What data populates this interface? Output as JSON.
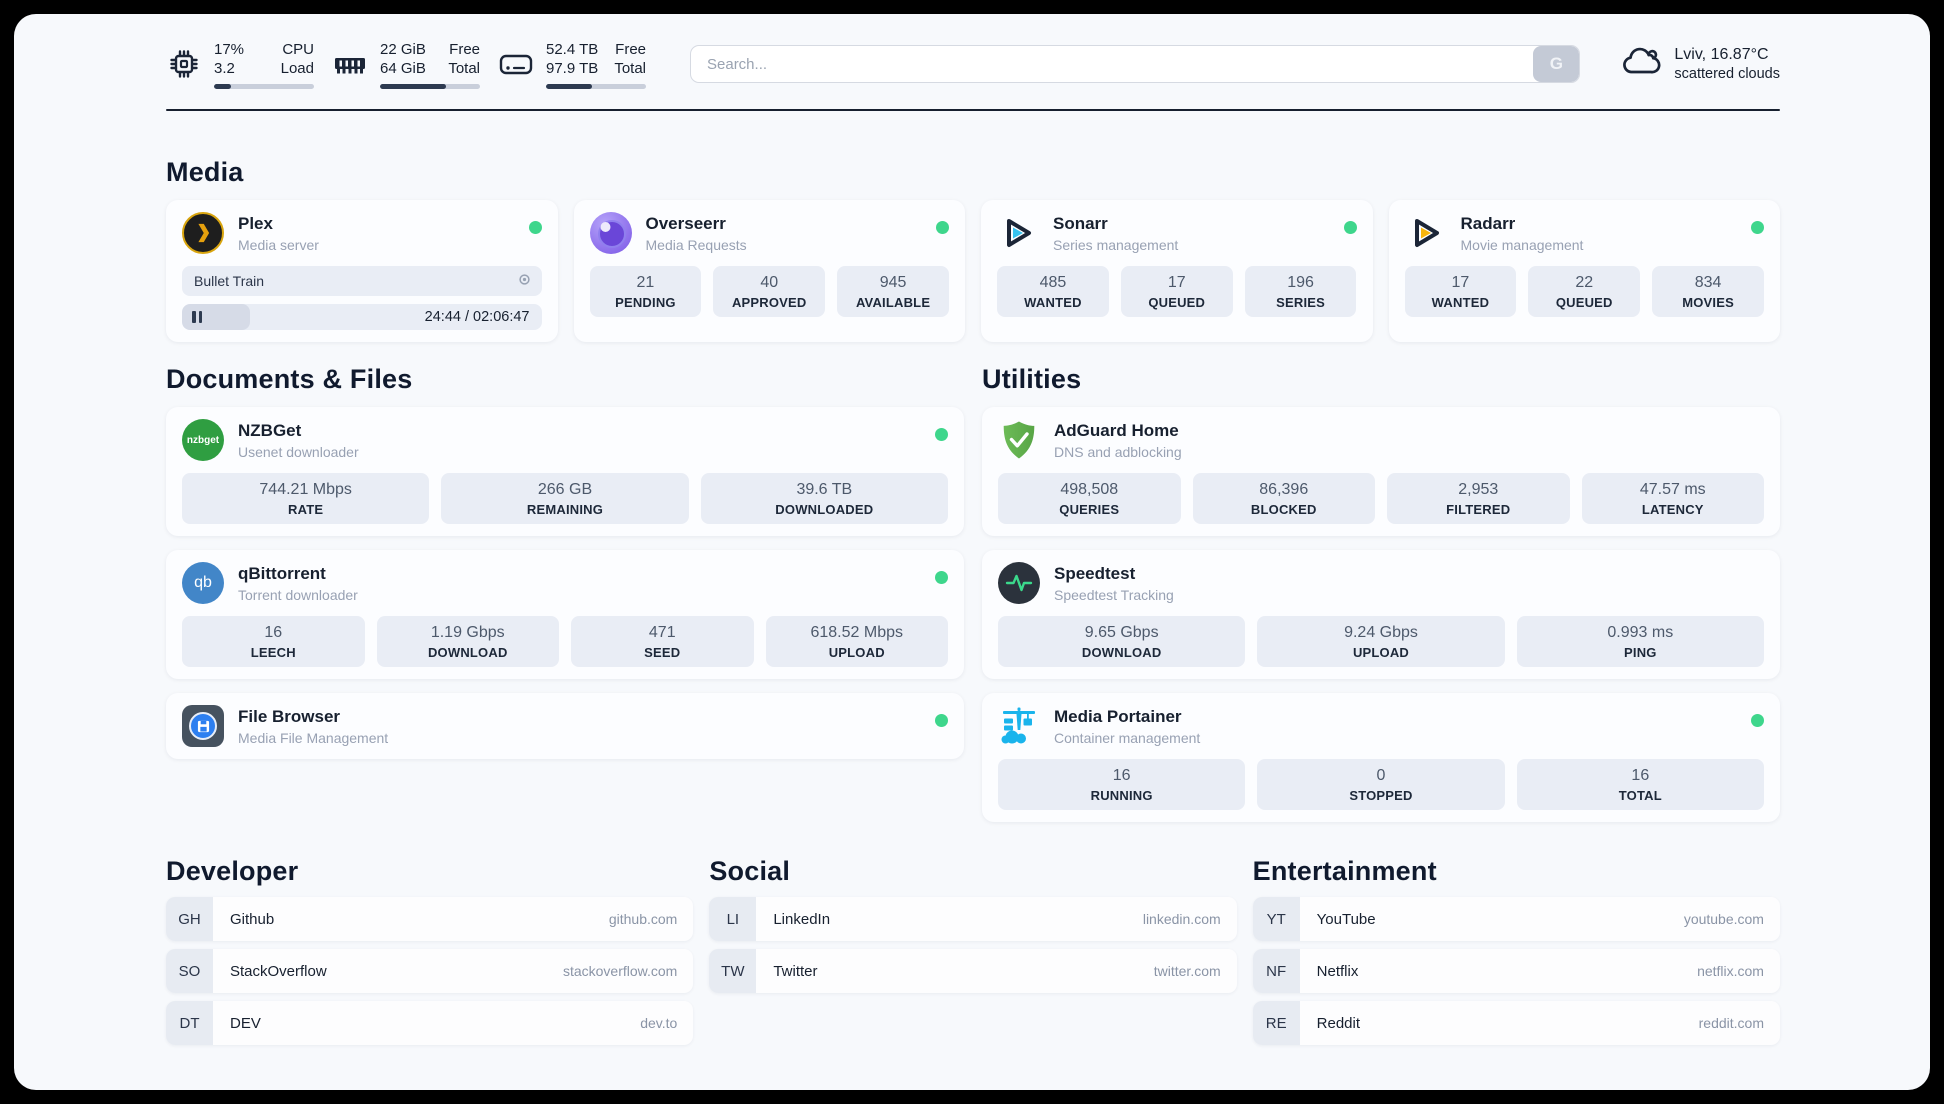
{
  "topbar": {
    "cpu": {
      "value1": "17%",
      "value2": "3.2",
      "label1": "CPU",
      "label2": "Load",
      "progress": 17
    },
    "ram": {
      "value1": "22 GiB",
      "value2": "64 GiB",
      "label1": "Free",
      "label2": "Total",
      "progress": 66
    },
    "disk": {
      "value1": "52.4 TB",
      "value2": "97.9 TB",
      "label1": "Free",
      "label2": "Total",
      "progress": 46
    },
    "search": {
      "placeholder": "Search...",
      "button_label": "G",
      "value": ""
    },
    "weather": {
      "location": "Lviv, 16.87°C",
      "condition": "scattered clouds"
    }
  },
  "sections": {
    "media": {
      "title": "Media"
    },
    "documents": {
      "title": "Documents & Files"
    },
    "utilities": {
      "title": "Utilities"
    },
    "developer": {
      "title": "Developer"
    },
    "social": {
      "title": "Social"
    },
    "entertainment": {
      "title": "Entertainment"
    }
  },
  "colors": {
    "accent_green": "#3ed68c",
    "text_dark": "#17202f",
    "stat_bg": "#e9edf5"
  },
  "apps": {
    "plex": {
      "name": "Plex",
      "description": "Media server",
      "now_playing": {
        "title": "Bullet Train",
        "time_display": "24:44 / 02:06:47",
        "progress": 19
      }
    },
    "overseerr": {
      "name": "Overseerr",
      "description": "Media Requests",
      "stats": [
        {
          "value": "21",
          "label": "PENDING"
        },
        {
          "value": "40",
          "label": "APPROVED"
        },
        {
          "value": "945",
          "label": "AVAILABLE"
        }
      ]
    },
    "sonarr": {
      "name": "Sonarr",
      "description": "Series management",
      "stats": [
        {
          "value": "485",
          "label": "WANTED"
        },
        {
          "value": "17",
          "label": "QUEUED"
        },
        {
          "value": "196",
          "label": "SERIES"
        }
      ]
    },
    "radarr": {
      "name": "Radarr",
      "description": "Movie management",
      "stats": [
        {
          "value": "17",
          "label": "WANTED"
        },
        {
          "value": "22",
          "label": "QUEUED"
        },
        {
          "value": "834",
          "label": "MOVIES"
        }
      ]
    },
    "nzbget": {
      "name": "NZBGet",
      "description": "Usenet downloader",
      "icon_text": "nzbget",
      "stats": [
        {
          "value": "744.21 Mbps",
          "label": "RATE"
        },
        {
          "value": "266 GB",
          "label": "REMAINING"
        },
        {
          "value": "39.6 TB",
          "label": "DOWNLOADED"
        }
      ]
    },
    "qbittorrent": {
      "name": "qBittorrent",
      "description": "Torrent downloader",
      "icon_text": "qb",
      "stats": [
        {
          "value": "16",
          "label": "LEECH"
        },
        {
          "value": "1.19 Gbps",
          "label": "DOWNLOAD"
        },
        {
          "value": "471",
          "label": "SEED"
        },
        {
          "value": "618.52 Mbps",
          "label": "UPLOAD"
        }
      ]
    },
    "filebrowser": {
      "name": "File Browser",
      "description": "Media File Management"
    },
    "adguard": {
      "name": "AdGuard Home",
      "description": "DNS and adblocking",
      "stats": [
        {
          "value": "498,508",
          "label": "QUERIES"
        },
        {
          "value": "86,396",
          "label": "BLOCKED"
        },
        {
          "value": "2,953",
          "label": "FILTERED"
        },
        {
          "value": "47.57 ms",
          "label": "LATENCY"
        }
      ]
    },
    "speedtest": {
      "name": "Speedtest",
      "description": "Speedtest Tracking",
      "stats": [
        {
          "value": "9.65 Gbps",
          "label": "DOWNLOAD"
        },
        {
          "value": "9.24 Gbps",
          "label": "UPLOAD"
        },
        {
          "value": "0.993 ms",
          "label": "PING"
        }
      ]
    },
    "portainer": {
      "name": "Media Portainer",
      "description": "Container management",
      "stats": [
        {
          "value": "16",
          "label": "RUNNING"
        },
        {
          "value": "0",
          "label": "STOPPED"
        },
        {
          "value": "16",
          "label": "TOTAL"
        }
      ]
    }
  },
  "bookmarks": {
    "developer": [
      {
        "abbr": "GH",
        "name": "Github",
        "url": "github.com"
      },
      {
        "abbr": "SO",
        "name": "StackOverflow",
        "url": "stackoverflow.com"
      },
      {
        "abbr": "DT",
        "name": "DEV",
        "url": "dev.to"
      }
    ],
    "social": [
      {
        "abbr": "LI",
        "name": "LinkedIn",
        "url": "linkedin.com"
      },
      {
        "abbr": "TW",
        "name": "Twitter",
        "url": "twitter.com"
      }
    ],
    "entertainment": [
      {
        "abbr": "YT",
        "name": "YouTube",
        "url": "youtube.com"
      },
      {
        "abbr": "NF",
        "name": "Netflix",
        "url": "netflix.com"
      },
      {
        "abbr": "RE",
        "name": "Reddit",
        "url": "reddit.com"
      }
    ]
  }
}
